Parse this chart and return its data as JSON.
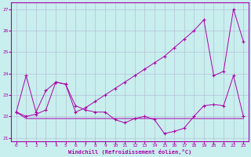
{
  "xlabel": "Windchill (Refroidissement éolien,°C)",
  "xlim": [
    -0.5,
    23.5
  ],
  "ylim": [
    20.85,
    27.3
  ],
  "yticks": [
    21,
    22,
    23,
    24,
    25,
    26,
    27
  ],
  "xticks": [
    0,
    1,
    2,
    3,
    4,
    5,
    6,
    7,
    8,
    9,
    10,
    11,
    12,
    13,
    14,
    15,
    16,
    17,
    18,
    19,
    20,
    21,
    22,
    23
  ],
  "bg_color": "#c8eeee",
  "line_color": "#aa00aa",
  "grid_color": "#b0b8d0",
  "line1": {
    "x": [
      0,
      1,
      2,
      3,
      4,
      5,
      6,
      7,
      8,
      9,
      10,
      11,
      12,
      13,
      14,
      15,
      16,
      17,
      18,
      19,
      20,
      21,
      22,
      23
    ],
    "y": [
      22.2,
      23.9,
      22.2,
      23.2,
      23.6,
      23.5,
      22.2,
      22.4,
      22.7,
      23.0,
      23.3,
      23.6,
      23.9,
      24.2,
      24.5,
      24.8,
      25.2,
      25.6,
      26.0,
      26.5,
      23.9,
      24.1,
      27.0,
      25.5
    ]
  },
  "line2": {
    "x": [
      0,
      1,
      2,
      3,
      4,
      5,
      6,
      7,
      8,
      9,
      10,
      11,
      12,
      13,
      14,
      15,
      16,
      17,
      18,
      19,
      20,
      21,
      22,
      23
    ],
    "y": [
      22.2,
      22.0,
      22.1,
      22.3,
      23.6,
      23.5,
      22.5,
      22.3,
      22.2,
      22.2,
      21.85,
      21.7,
      21.9,
      22.0,
      21.85,
      21.2,
      21.3,
      21.45,
      22.0,
      22.5,
      22.55,
      22.5,
      23.9,
      22.0
    ]
  },
  "line3": {
    "x": [
      0,
      1,
      2,
      3,
      4,
      5,
      6,
      7,
      8,
      9,
      10,
      11,
      12,
      13,
      14,
      15,
      16,
      17,
      18,
      19,
      20,
      21,
      22,
      23
    ],
    "y": [
      22.2,
      21.9,
      21.9,
      21.9,
      21.9,
      21.9,
      21.9,
      21.9,
      21.9,
      21.9,
      21.9,
      21.9,
      21.9,
      21.9,
      21.9,
      21.9,
      21.9,
      21.9,
      21.9,
      21.9,
      21.9,
      21.9,
      21.9,
      21.9
    ]
  }
}
